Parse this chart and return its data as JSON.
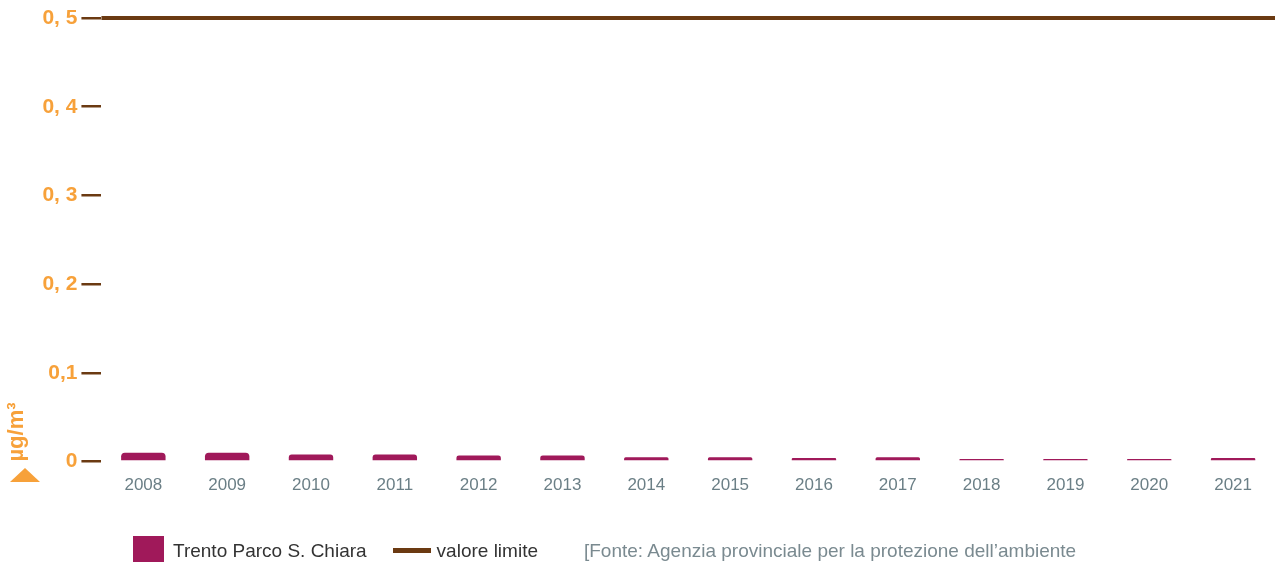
{
  "chart_data": {
    "type": "bar",
    "ylabel": "µg/m³",
    "categories": [
      "2008",
      "2009",
      "2010",
      "2011",
      "2012",
      "2013",
      "2014",
      "2015",
      "2016",
      "2017",
      "2018",
      "2019",
      "2020",
      "2021"
    ],
    "series": [
      {
        "name": "Trento Parco S. Chiara",
        "color": "#a0195a",
        "values": [
          0.01,
          0.01,
          0.008,
          0.008,
          0.007,
          0.007,
          0.005,
          0.005,
          0.004,
          0.005,
          0.003,
          0.003,
          0.003,
          0.004
        ]
      }
    ],
    "ylim": [
      0,
      0.5
    ],
    "yticks": [
      0,
      {
        "value": 0.1,
        "label": "0,1"
      },
      {
        "value": 0.2,
        "label": "0, 2"
      },
      {
        "value": 0.3,
        "label": "0, 3"
      },
      {
        "value": 0.4,
        "label": "0, 4"
      },
      {
        "value": 0.5,
        "label": "0, 5"
      }
    ],
    "ref_lines": [
      {
        "axis": "y",
        "value": 0.5,
        "label": "valore limite",
        "color": "#6b3a12"
      }
    ],
    "grid": false,
    "legend": "bottom",
    "annotations": [
      "[Fonte: Agenzia provinciale per la protezione dell’ambiente"
    ]
  }
}
